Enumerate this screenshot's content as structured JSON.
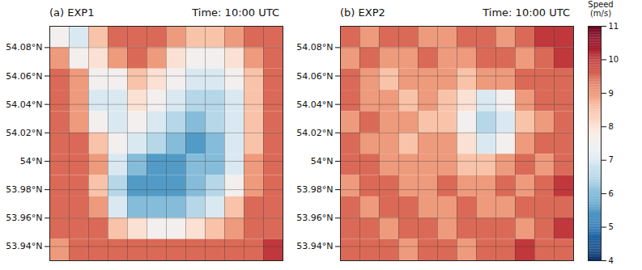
{
  "chart_data": [
    {
      "type": "heatmap",
      "title": "(a) EXP1",
      "subtitle": "Time: 10:00 UTC",
      "tick_labels": "y",
      "grid": true,
      "ylim": [
        53.93,
        54.095
      ],
      "yticks": [
        {
          "value": 53.94,
          "label": "53.94°N"
        },
        {
          "value": 53.96,
          "label": "53.96°N"
        },
        {
          "value": 53.98,
          "label": "53.98°N"
        },
        {
          "value": 54,
          "label": "54°N"
        },
        {
          "value": 54.02,
          "label": "54.02°N"
        },
        {
          "value": 54.04,
          "label": "54.04°N"
        },
        {
          "value": 54.06,
          "label": "54.06°N"
        },
        {
          "value": 54.08,
          "label": "54.08°N"
        }
      ],
      "y": [
        54.0875,
        54.0725,
        54.0575,
        54.0425,
        54.0275,
        54.0125,
        53.9975,
        53.9825,
        53.9675,
        53.9525,
        53.9375
      ],
      "z": [
        [
          7.5,
          7,
          8.5,
          9.5,
          9.5,
          9.5,
          9,
          8.5,
          8.5,
          9,
          9.5,
          9.5
        ],
        [
          9,
          7.5,
          8,
          9,
          9.5,
          9,
          8,
          7.5,
          7.5,
          8,
          9,
          9.5
        ],
        [
          9.5,
          9,
          7.5,
          7.5,
          8.5,
          8,
          7.5,
          7,
          7,
          7.5,
          8.5,
          9.5
        ],
        [
          9.5,
          9,
          7,
          7,
          8,
          7.5,
          7,
          6.5,
          6.5,
          7,
          8.5,
          9.5
        ],
        [
          9.5,
          9,
          7.5,
          7,
          7.5,
          7,
          6.5,
          6,
          6.5,
          7,
          8.5,
          9.5
        ],
        [
          9.5,
          9.5,
          8.5,
          7.5,
          7,
          6.5,
          6,
          5.5,
          6,
          7,
          8.5,
          9.5
        ],
        [
          9.5,
          9.5,
          9,
          7,
          6,
          5.5,
          5.5,
          6,
          6,
          7,
          9,
          9.5
        ],
        [
          9.5,
          9.5,
          8.5,
          6.5,
          5.5,
          5.5,
          5.5,
          6,
          6.5,
          7.5,
          9,
          9.5
        ],
        [
          9.5,
          9.5,
          9,
          7,
          6,
          6,
          6,
          6.5,
          7,
          8.5,
          9.5,
          9.5
        ],
        [
          9.5,
          9.5,
          9.5,
          8.5,
          8,
          7.5,
          7.5,
          8,
          8.5,
          9,
          9.5,
          9.5
        ],
        [
          9,
          9.5,
          9.5,
          9.5,
          9.5,
          9.5,
          9.5,
          9.5,
          9.5,
          9.5,
          9.5,
          10
        ]
      ]
    },
    {
      "type": "heatmap",
      "title": "(b) EXP2",
      "subtitle": "Time: 10:00 UTC",
      "tick_labels": "y",
      "grid": true,
      "ylim": [
        53.93,
        54.095
      ],
      "yticks": [
        {
          "value": 53.94,
          "label": "53.94°N"
        },
        {
          "value": 53.96,
          "label": "53.96°N"
        },
        {
          "value": 53.98,
          "label": "53.98°N"
        },
        {
          "value": 54,
          "label": "54°N"
        },
        {
          "value": 54.02,
          "label": "54.02°N"
        },
        {
          "value": 54.04,
          "label": "54.04°N"
        },
        {
          "value": 54.06,
          "label": "54.06°N"
        },
        {
          "value": 54.08,
          "label": "54.08°N"
        }
      ],
      "y": [
        54.0875,
        54.0725,
        54.0575,
        54.0425,
        54.0275,
        54.0125,
        53.9975,
        53.9825,
        53.9675,
        53.9525,
        53.9375
      ],
      "z": [
        [
          9.5,
          9,
          9.5,
          9.5,
          9,
          9,
          9.5,
          9.5,
          9,
          9.5,
          10,
          10
        ],
        [
          9,
          9.5,
          9,
          9,
          9.5,
          9,
          9,
          9.5,
          9.5,
          9,
          9.5,
          10
        ],
        [
          9.5,
          9,
          8.5,
          9,
          9,
          9,
          8.5,
          9,
          9,
          9.5,
          9.5,
          9.5
        ],
        [
          9.5,
          9,
          9,
          8.5,
          9,
          8.5,
          8,
          7,
          7.5,
          9,
          9.5,
          9.5
        ],
        [
          9,
          9.5,
          9,
          9,
          8.5,
          8.5,
          7.5,
          6.5,
          7,
          8.5,
          9,
          9.5
        ],
        [
          9.5,
          9,
          9,
          8.5,
          9,
          9,
          8,
          7,
          7.5,
          9,
          9.5,
          9.5
        ],
        [
          9.5,
          9.5,
          9,
          9,
          9,
          9,
          8.5,
          8.5,
          9,
          9.5,
          9,
          9.5
        ],
        [
          9,
          9.5,
          9.5,
          9,
          9,
          9.5,
          9,
          9,
          9.5,
          9,
          9.5,
          10
        ],
        [
          9.5,
          9,
          9.5,
          9.5,
          9,
          9,
          9.5,
          9,
          9,
          9.5,
          9.5,
          9.5
        ],
        [
          9.5,
          9.5,
          9,
          9.5,
          9.5,
          9,
          9.5,
          9.5,
          9.5,
          9,
          9.5,
          10
        ],
        [
          9.5,
          9.5,
          9.5,
          9,
          9.5,
          9.5,
          9,
          9.5,
          9.5,
          10,
          9.5,
          9.5
        ]
      ],
      "colorbar": {
        "label": "Speed (m/s)",
        "range": [
          4,
          11
        ],
        "ticks": [
          4,
          5,
          6,
          7,
          8,
          9,
          10,
          11
        ]
      }
    }
  ]
}
